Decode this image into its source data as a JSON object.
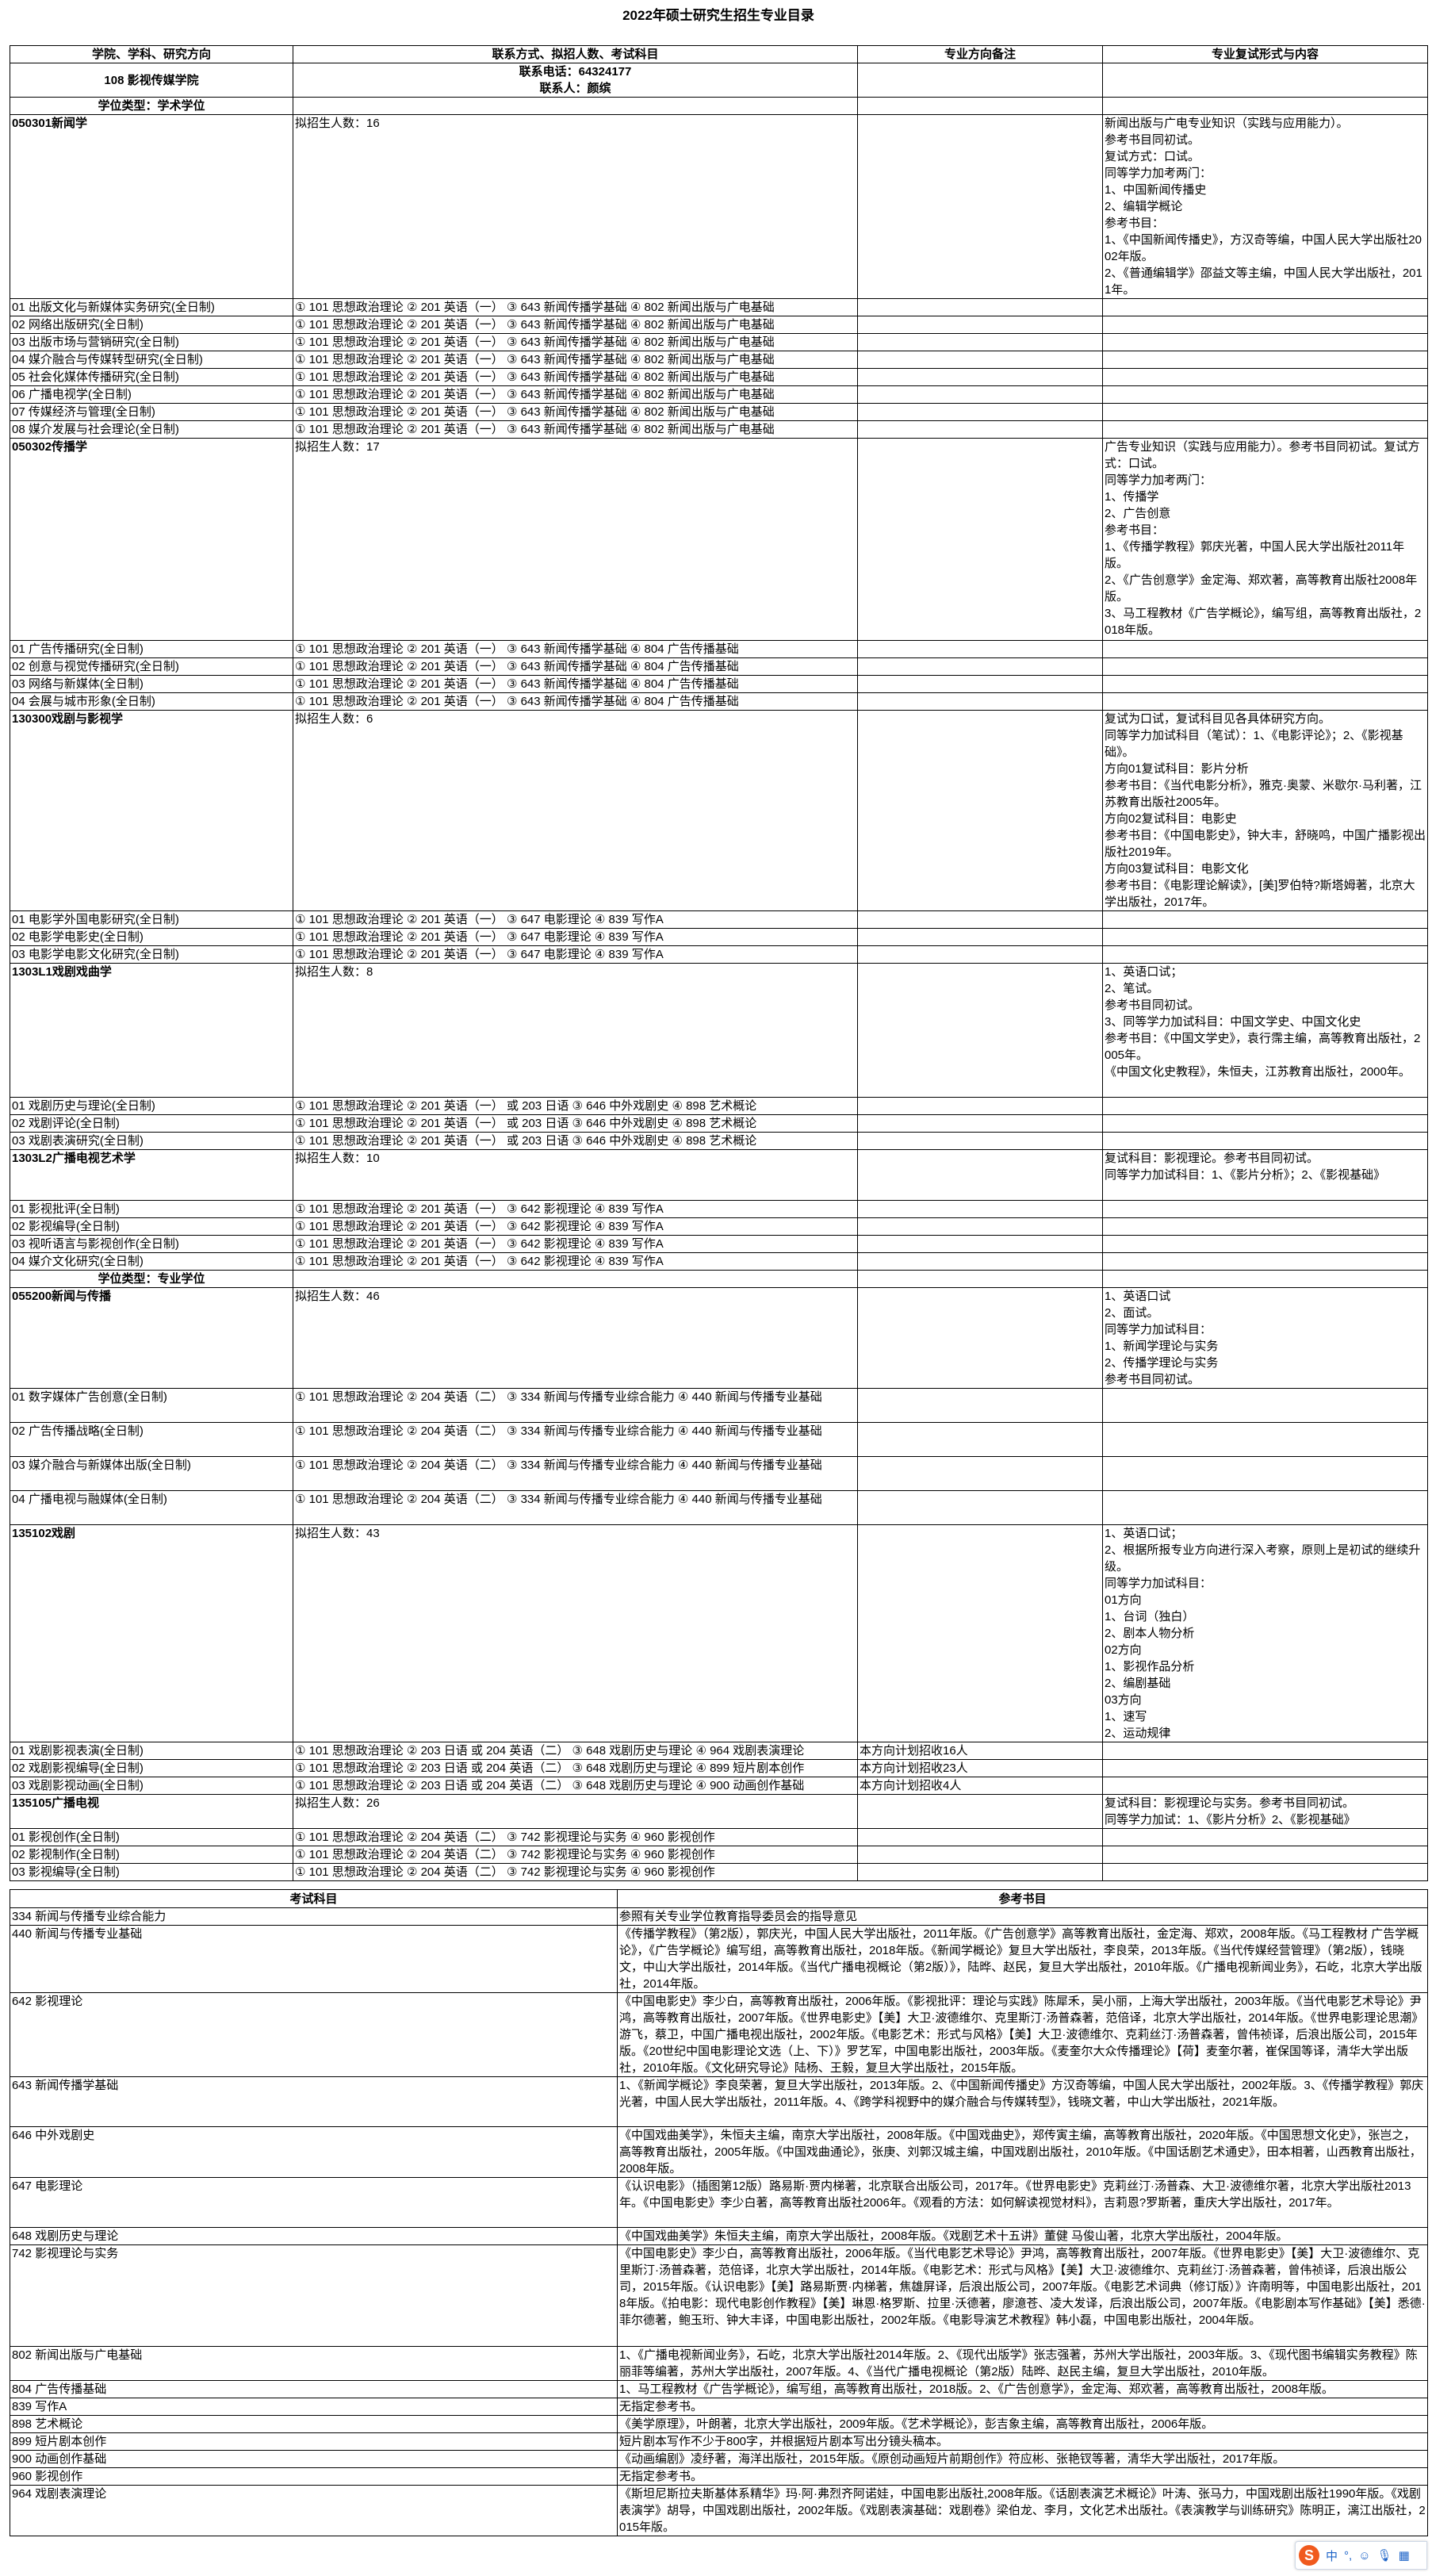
{
  "title": "2022年硕士研究生招生专业目录",
  "header": [
    "学院、学科、研究方向",
    "联系方式、拟招人数、考试科目",
    "专业方向备注",
    "专业复试形式与内容"
  ],
  "college": {
    "name": "108 影视传媒学院",
    "phone": "联系电话：64324177",
    "contact": "联系人：颜缤"
  },
  "sections": [
    {
      "degree_type": "学位类型：学术学位",
      "majors": [
        {
          "name": "050301新闻学",
          "quota": "拟招生人数：16",
          "retest": "新闻出版与广电专业知识（实践与应用能力）。\n参考书目同初试。\n复试方式：口试。\n同等学力加考两门：\n1、中国新闻传播史\n2、编辑学概论\n参考书目：\n1、《中国新闻传播史》，方汉奇等编，中国人民大学出版社2002年版。\n2、《普通编辑学》邵益文等主编，中国人民大学出版社，2011年。",
          "directions": [
            {
              "name": "01 出版文化与新媒体实务研究(全日制)",
              "exams": "① 101 思想政治理论 ② 201 英语（一） ③ 643 新闻传播学基础 ④ 802 新闻出版与广电基础",
              "note": ""
            },
            {
              "name": "02 网络出版研究(全日制)",
              "exams": "① 101 思想政治理论 ② 201 英语（一） ③ 643 新闻传播学基础 ④ 802 新闻出版与广电基础",
              "note": ""
            },
            {
              "name": "03 出版市场与营销研究(全日制)",
              "exams": "① 101 思想政治理论 ② 201 英语（一） ③ 643 新闻传播学基础 ④ 802 新闻出版与广电基础",
              "note": ""
            },
            {
              "name": "04 媒介融合与传媒转型研究(全日制)",
              "exams": "① 101 思想政治理论 ② 201 英语（一） ③ 643 新闻传播学基础 ④ 802 新闻出版与广电基础",
              "note": ""
            },
            {
              "name": "05 社会化媒体传播研究(全日制)",
              "exams": "① 101 思想政治理论 ② 201 英语（一） ③ 643 新闻传播学基础 ④ 802 新闻出版与广电基础",
              "note": ""
            },
            {
              "name": "06 广播电视学(全日制)",
              "exams": "① 101 思想政治理论 ② 201 英语（一） ③ 643 新闻传播学基础 ④ 802 新闻出版与广电基础",
              "note": ""
            },
            {
              "name": "07 传媒经济与管理(全日制)",
              "exams": "① 101 思想政治理论 ② 201 英语（一） ③ 643 新闻传播学基础 ④ 802 新闻出版与广电基础",
              "note": ""
            },
            {
              "name": "08 媒介发展与社会理论(全日制)",
              "exams": "① 101 思想政治理论 ② 201 英语（一） ③ 643 新闻传播学基础 ④ 802 新闻出版与广电基础",
              "note": ""
            }
          ]
        },
        {
          "name": "050302传播学",
          "quota": "拟招生人数：17",
          "retest": "广告专业知识（实践与应用能力）。参考书目同初试。复试方式：口试。\n同等学力加考两门：\n1、传播学\n2、广告创意\n参考书目：\n1、《传播学教程》郭庆光著，中国人民大学出版社2011年版。\n2、《广告创意学》金定海、郑欢著，高等教育出版社2008年版。\n3、马工程教材《广告学概论》，编写组，高等教育出版社，2018年版。",
          "directions": [
            {
              "name": "01 广告传播研究(全日制)",
              "exams": "① 101 思想政治理论 ② 201 英语（一） ③ 643 新闻传播学基础 ④ 804 广告传播基础",
              "note": ""
            },
            {
              "name": "02 创意与视觉传播研究(全日制)",
              "exams": "① 101 思想政治理论 ② 201 英语（一） ③ 643 新闻传播学基础 ④ 804 广告传播基础",
              "note": ""
            },
            {
              "name": "03 网络与新媒体(全日制)",
              "exams": "① 101 思想政治理论 ② 201 英语（一） ③ 643 新闻传播学基础 ④ 804 广告传播基础",
              "note": ""
            },
            {
              "name": "04 会展与城市形象(全日制)",
              "exams": "① 101 思想政治理论 ② 201 英语（一） ③ 643 新闻传播学基础 ④ 804 广告传播基础",
              "note": ""
            }
          ]
        },
        {
          "name": "130300戏剧与影视学",
          "quota": "拟招生人数：6",
          "retest": "复试为口试，复试科目见各具体研究方向。\n同等学力加试科目（笔试）：1、《电影评论》；2、《影视基础》。\n方向01复试科目：影片分析\n参考书目：《当代电影分析》，雅克·奥蒙、米歇尔·马利著，江苏教育出版社2005年。\n方向02复试科目：电影史\n参考书目：《中国电影史》，钟大丰，舒晓鸣，中国广播影视出版社2019年。\n方向03复试科目：电影文化\n参考书目：《电影理论解读》，[美]罗伯特?斯塔姆著，北京大学出版社，2017年。",
          "directions": [
            {
              "name": "01 电影学外国电影研究(全日制)",
              "exams": "① 101 思想政治理论 ② 201 英语（一） ③ 647 电影理论 ④ 839 写作A",
              "note": ""
            },
            {
              "name": "02 电影学电影史(全日制)",
              "exams": "① 101 思想政治理论 ② 201 英语（一） ③ 647 电影理论 ④ 839 写作A",
              "note": ""
            },
            {
              "name": "03 电影学电影文化研究(全日制)",
              "exams": "① 101 思想政治理论 ② 201 英语（一） ③ 647 电影理论 ④ 839 写作A",
              "note": ""
            }
          ]
        },
        {
          "name": "1303L1戏剧戏曲学",
          "quota": "拟招生人数：8",
          "retest": "1、英语口试；\n2、笔试。\n参考书目同初试。\n3、同等学力加试科目：中国文学史、中国文化史\n参考书目：《中国文学史》，袁行霈主编，高等教育出版社，2005年。\n《中国文化史教程》，朱恒夫，江苏教育出版社，2000年。",
          "directions": [
            {
              "name": "01 戏剧历史与理论(全日制)",
              "exams": "① 101 思想政治理论 ② 201 英语（一） 或 203 日语 ③ 646 中外戏剧史 ④ 898 艺术概论",
              "note": ""
            },
            {
              "name": "02 戏剧评论(全日制)",
              "exams": "① 101 思想政治理论 ② 201 英语（一） 或 203 日语 ③ 646 中外戏剧史 ④ 898 艺术概论",
              "note": ""
            },
            {
              "name": "03 戏剧表演研究(全日制)",
              "exams": "① 101 思想政治理论 ② 201 英语（一） 或 203 日语 ③ 646 中外戏剧史 ④ 898 艺术概论",
              "note": ""
            }
          ]
        },
        {
          "name": "1303L2广播电视艺术学",
          "quota": "拟招生人数：10",
          "retest": "复试科目：影视理论。参考书目同初试。\n同等学力加试科目：1、《影片分析》；2、《影视基础》",
          "directions": [
            {
              "name": "01 影视批评(全日制)",
              "exams": "① 101 思想政治理论 ② 201 英语（一） ③ 642 影视理论 ④ 839 写作A",
              "note": ""
            },
            {
              "name": "02 影视编导(全日制)",
              "exams": "① 101 思想政治理论 ② 201 英语（一） ③ 642 影视理论 ④ 839 写作A",
              "note": ""
            },
            {
              "name": "03 视听语言与影视创作(全日制)",
              "exams": "① 101 思想政治理论 ② 201 英语（一） ③ 642 影视理论 ④ 839 写作A",
              "note": ""
            },
            {
              "name": "04 媒介文化研究(全日制)",
              "exams": "① 101 思想政治理论 ② 201 英语（一） ③ 642 影视理论 ④ 839 写作A",
              "note": ""
            }
          ]
        }
      ]
    },
    {
      "degree_type": "学位类型：专业学位",
      "majors": [
        {
          "name": "055200新闻与传播",
          "quota": "拟招生人数：46",
          "retest": "1、英语口试\n2、面试。\n同等学力加试科目：\n1、新闻学理论与实务\n2、传播学理论与实务\n参考书目同初试。",
          "directions": [
            {
              "name": "01 数字媒体广告创意(全日制)",
              "exams": "① 101 思想政治理论 ② 204 英语（二） ③ 334 新闻与传播专业综合能力 ④ 440 新闻与传播专业基础",
              "note": ""
            },
            {
              "name": "02 广告传播战略(全日制)",
              "exams": "① 101 思想政治理论 ② 204 英语（二） ③ 334 新闻与传播专业综合能力 ④ 440 新闻与传播专业基础",
              "note": ""
            },
            {
              "name": "03 媒介融合与新媒体出版(全日制)",
              "exams": "① 101 思想政治理论 ② 204 英语（二） ③ 334 新闻与传播专业综合能力 ④ 440 新闻与传播专业基础",
              "note": ""
            },
            {
              "name": "04 广播电视与融媒体(全日制)",
              "exams": "① 101 思想政治理论 ② 204 英语（二） ③ 334 新闻与传播专业综合能力 ④ 440 新闻与传播专业基础",
              "note": ""
            }
          ]
        },
        {
          "name": "135102戏剧",
          "quota": "拟招生人数：43",
          "retest": "1、英语口试；\n2、根据所报专业方向进行深入考察，原则上是初试的继续升级。\n同等学力加试科目：\n01方向\n1、台词（独白）\n2、剧本人物分析\n02方向\n1、影视作品分析\n2、编剧基础\n03方向\n1、速写\n2、运动规律",
          "directions": [
            {
              "name": "01 戏剧影视表演(全日制)",
              "exams": "① 101 思想政治理论 ② 203 日语 或 204 英语（二） ③ 648 戏剧历史与理论 ④ 964 戏剧表演理论",
              "note": "本方向计划招收16人"
            },
            {
              "name": "02 戏剧影视编导(全日制)",
              "exams": "① 101 思想政治理论 ② 203 日语 或 204 英语（二） ③ 648 戏剧历史与理论 ④ 899 短片剧本创作",
              "note": "本方向计划招收23人"
            },
            {
              "name": "03 戏剧影视动画(全日制)",
              "exams": "① 101 思想政治理论 ② 203 日语 或 204 英语（二） ③ 648 戏剧历史与理论 ④ 900 动画创作基础",
              "note": "本方向计划招收4人"
            }
          ]
        },
        {
          "name": "135105广播电视",
          "quota": "拟招生人数：26",
          "retest": "复试科目：影视理论与实务。参考书目同初试。\n同等学力加试：1、《影片分析》2、《影视基础》",
          "directions": [
            {
              "name": "01 影视创作(全日制)",
              "exams": "① 101 思想政治理论 ② 204 英语（二） ③ 742 影视理论与实务 ④ 960 影视创作",
              "note": ""
            },
            {
              "name": "02 影视制作(全日制)",
              "exams": "① 101 思想政治理论 ② 204 英语（二） ③ 742 影视理论与实务 ④ 960 影视创作",
              "note": ""
            },
            {
              "name": "03 影视编导(全日制)",
              "exams": "① 101 思想政治理论 ② 204 英语（二） ③ 742 影视理论与实务 ④ 960 影视创作",
              "note": ""
            }
          ]
        }
      ]
    }
  ],
  "ref_table": {
    "headers": [
      "考试科目",
      "参考书目"
    ],
    "rows": [
      {
        "subject": "334 新闻与传播专业综合能力",
        "refs": "参照有关专业学位教育指导委员会的指导意见"
      },
      {
        "subject": "440 新闻与传播专业基础",
        "refs": "《传播学教程》（第2版），郭庆光，中国人民大学出版社，2011年版。《广告创意学》高等教育出版社，金定海、郑欢，2008年版。《马工程教材 广告学概论》，《广告学概论》编写组，高等教育出版社，2018年版。《新闻学概论》复旦大学出版社，李良荣，2013年版。《当代传媒经营管理》（第2版），钱晓文，中山大学出版社，2014年版。《当代广播电视概论（第2版）》，陆晔、赵民，复旦大学出版社，2010年版。《广播电视新闻业务》，石屹，北京大学出版社，2014年版。"
      },
      {
        "subject": "642 影视理论",
        "refs": "《中国电影史》李少白，高等教育出版社，2006年版。《影视批评：理论与实践》陈犀禾，吴小丽，上海大学出版社，2003年版。《当代电影艺术导论》尹鸿，高等教育出版社，2007年版。《世界电影史》【美】大卫·波德维尔、克里斯汀·汤普森著，范倍译，北京大学出版社，2014年版。《世界电影理论思潮》游飞，蔡卫，中国广播电视出版社，2002年版。《电影艺术：形式与风格》【美】大卫·波德维尔、克莉丝汀·汤普森著，曾伟祯译，后浪出版公司，2015年版。《20世纪中国电影理论文选（上、下）》罗艺军，中国电影出版社，2003年版。《麦奎尔大众传播理论》【荷】麦奎尔著，崔保国等译，清华大学出版社，2010年版。《文化研究导论》陆杨、王毅，复旦大学出版社，2015年版。"
      },
      {
        "subject": "643 新闻传播学基础",
        "refs": "1、《新闻学概论》李良荣著，复旦大学出版社，2013年版。2、《中国新闻传播史》方汉奇等编，中国人民大学出版社，2002年版。3、《传播学教程》郭庆光著，中国人民大学出版社，2011年版。4、《跨学科视野中的媒介融合与传媒转型》，钱晓文著，中山大学出版社，2021年版。"
      },
      {
        "subject": "646 中外戏剧史",
        "refs": "《中国戏曲美学》，朱恒夫主编，南京大学出版社，2008年版。《中国戏曲史》，郑传寅主编，高等教育出版社，2020年版。《中国思想文化史》，张岂之，高等教育出版社，2005年版。《中国戏曲通论》，张庚、刘郭汉城主编，中国戏剧出版社，2010年版。《中国话剧艺术通史》，田本相著，山西教育出版社，2008年版。"
      },
      {
        "subject": "647 电影理论",
        "refs": "《认识电影》（插图第12版）路易斯·贾内梯著，北京联合出版公司，2017年。《世界电影史》克莉丝汀·汤普森、大卫·波德维尔著，北京大学出版社2013年。《中国电影史》李少白著，高等教育出版社2006年。《观看的方法：如何解读视觉材料》，吉莉恩?罗斯著，重庆大学出版社，2017年。"
      },
      {
        "subject": "648 戏剧历史与理论",
        "refs": "《中国戏曲美学》朱恒夫主编，南京大学出版社，2008年版。《戏剧艺术十五讲》董健 马俊山著，北京大学出版社，2004年版。"
      },
      {
        "subject": "742 影视理论与实务",
        "refs": "《中国电影史》李少白，高等教育出版社，2006年版。《当代电影艺术导论》尹鸿，高等教育出版社，2007年版。《世界电影史》【美】大卫·波德维尔、克里斯汀·汤普森著，范倍译，北京大学出版社，2014年版。《电影艺术：形式与风格》【美】大卫·波德维尔、克莉丝汀·汤普森著，曾伟祯译，后浪出版公司，2015年版。《认识电影》【美】路易斯贾·内梯著，焦雄屏译，后浪出版公司，2007年版。《电影艺术词典（修订版）》许南明等，中国电影出版社，2018年版。《拍电影：现代电影创作教程》【美】琳恩·格罗斯、拉里·沃德著，廖澺苍、凌大发译，后浪出版公司，2007年版。《电影剧本写作基础》【美】悉德·菲尔德著，鲍玉珩、钟大丰译，中国电影出版社，2002年版。《电影导演艺术教程》韩小磊，中国电影出版社，2004年版。"
      },
      {
        "subject": "802 新闻出版与广电基础",
        "refs": "1、《广播电视新闻业务》，石屹，北京大学出版社2014年版。2、《现代出版学》张志强著，苏州大学出版社，2003年版。3、《现代图书编辑实务教程》陈丽菲等编著，苏州大学出版社，2007年版。4、《当代广播电视概论（第2版）陆晔、赵民主编，复旦大学出版社，2010年版。"
      },
      {
        "subject": "804 广告传播基础",
        "refs": "1、马工程教材《广告学概论》，编写组，高等教育出版社，2018版。2、《广告创意学》，金定海、郑欢著，高等教育出版社，2008年版。"
      },
      {
        "subject": "839 写作A",
        "refs": "无指定参考书。"
      },
      {
        "subject": "898 艺术概论",
        "refs": "《美学原理》，叶朗著，北京大学出版社，2009年版。《艺术学概论》，彭吉象主编，高等教育出版社，2006年版。"
      },
      {
        "subject": "899 短片剧本创作",
        "refs": "短片剧本写作不少于800字，并根据短片剧本写出分镜头稿本。"
      },
      {
        "subject": "900 动画创作基础",
        "refs": "《动画编剧》凌纾著，海洋出版社，2015年版。《原创动画短片前期创作》符应彬、张艳钗等著，清华大学出版社，2017年版。"
      },
      {
        "subject": "960 影视创作",
        "refs": "无指定参考书。"
      },
      {
        "subject": "964 戏剧表演理论",
        "refs": "《斯坦尼斯拉夫斯基体系精华》玛·阿·弗烈齐阿诺娃，中国电影出版社,2008年版。《话剧表演艺术概论》叶涛、张马力，中国戏剧出版社1990年版。《戏剧表演学》胡导，中国戏剧出版社，2002年版。《戏剧表演基础：戏剧卷》梁伯龙、李月，文化艺术出版社。《表演教学与训练研究》陈明正，漓江出版社，2015年版。"
      }
    ]
  },
  "ime_toolbar": {
    "mode": "中",
    "punct": "°,"
  }
}
